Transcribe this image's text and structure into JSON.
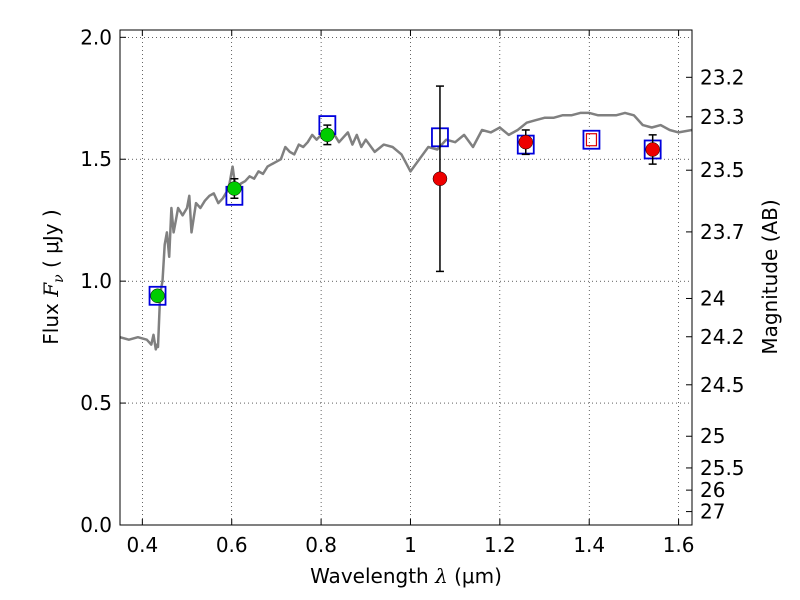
{
  "chart_data": {
    "type": "scatter",
    "xlabel": {
      "prefix": "Wavelength",
      "symbol": "λ",
      "unit": "(μm)"
    },
    "ylabel": {
      "prefix": "Flux",
      "symbol": "F",
      "subscript": "ν",
      "unit": "( μJy )"
    },
    "ylabel_right": "Magnitude (AB)",
    "xlim": [
      0.35,
      1.63
    ],
    "ylim": [
      0.0,
      2.03
    ],
    "grid": true,
    "x_ticks": [
      {
        "value": 0.4,
        "label": "0.4"
      },
      {
        "value": 0.6,
        "label": "0.6"
      },
      {
        "value": 0.8,
        "label": "0.8"
      },
      {
        "value": 1.0,
        "label": "1"
      },
      {
        "value": 1.2,
        "label": "1.2"
      },
      {
        "value": 1.4,
        "label": "1.4"
      },
      {
        "value": 1.6,
        "label": "1.6"
      }
    ],
    "y_ticks": [
      {
        "value": 0.0,
        "label": "0.0"
      },
      {
        "value": 0.5,
        "label": "0.5"
      },
      {
        "value": 1.0,
        "label": "1.0"
      },
      {
        "value": 1.5,
        "label": "1.5"
      },
      {
        "value": 2.0,
        "label": "2.0"
      }
    ],
    "y_right_ticks": [
      {
        "flux": 1.836,
        "label": "23.2"
      },
      {
        "flux": 1.674,
        "label": "23.3"
      },
      {
        "flux": 1.455,
        "label": "23.5"
      },
      {
        "flux": 1.202,
        "label": "23.7"
      },
      {
        "flux": 0.929,
        "label": "24"
      },
      {
        "flux": 0.772,
        "label": "24.2"
      },
      {
        "flux": 0.575,
        "label": "24.5"
      },
      {
        "flux": 0.364,
        "label": "25"
      },
      {
        "flux": 0.234,
        "label": "25.5"
      },
      {
        "flux": 0.143,
        "label": "26"
      },
      {
        "flux": 0.055,
        "label": "27"
      }
    ],
    "series": [
      {
        "type": "line",
        "color": "#808080",
        "x": [
          0.35,
          0.37,
          0.39,
          0.41,
          0.42,
          0.425,
          0.43,
          0.433,
          0.435,
          0.44,
          0.445,
          0.45,
          0.455,
          0.46,
          0.465,
          0.47,
          0.475,
          0.48,
          0.49,
          0.5,
          0.505,
          0.51,
          0.52,
          0.53,
          0.54,
          0.55,
          0.56,
          0.57,
          0.58,
          0.59,
          0.595,
          0.6,
          0.602,
          0.61,
          0.62,
          0.63,
          0.64,
          0.65,
          0.66,
          0.67,
          0.68,
          0.69,
          0.7,
          0.71,
          0.72,
          0.73,
          0.74,
          0.75,
          0.76,
          0.77,
          0.78,
          0.79,
          0.8,
          0.81,
          0.82,
          0.83,
          0.84,
          0.85,
          0.86,
          0.87,
          0.88,
          0.89,
          0.9,
          0.92,
          0.94,
          0.96,
          0.98,
          1.0,
          1.02,
          1.04,
          1.06,
          1.08,
          1.1,
          1.12,
          1.14,
          1.16,
          1.18,
          1.2,
          1.22,
          1.24,
          1.26,
          1.28,
          1.3,
          1.32,
          1.34,
          1.36,
          1.38,
          1.4,
          1.42,
          1.44,
          1.46,
          1.48,
          1.5,
          1.52,
          1.54,
          1.56,
          1.58,
          1.6,
          1.63
        ],
        "y": [
          0.77,
          0.76,
          0.77,
          0.76,
          0.74,
          0.78,
          0.72,
          0.74,
          0.73,
          0.95,
          1.0,
          1.15,
          1.2,
          1.1,
          1.3,
          1.2,
          1.25,
          1.3,
          1.27,
          1.3,
          1.35,
          1.2,
          1.32,
          1.3,
          1.33,
          1.35,
          1.36,
          1.32,
          1.34,
          1.37,
          1.4,
          1.45,
          1.47,
          1.36,
          1.4,
          1.41,
          1.43,
          1.42,
          1.45,
          1.44,
          1.47,
          1.48,
          1.49,
          1.5,
          1.55,
          1.53,
          1.52,
          1.56,
          1.55,
          1.57,
          1.6,
          1.58,
          1.6,
          1.61,
          1.62,
          1.6,
          1.57,
          1.59,
          1.61,
          1.56,
          1.6,
          1.55,
          1.58,
          1.53,
          1.56,
          1.55,
          1.52,
          1.45,
          1.5,
          1.55,
          1.54,
          1.58,
          1.57,
          1.6,
          1.55,
          1.62,
          1.61,
          1.63,
          1.6,
          1.62,
          1.65,
          1.66,
          1.67,
          1.67,
          1.68,
          1.68,
          1.69,
          1.69,
          1.68,
          1.68,
          1.68,
          1.69,
          1.68,
          1.64,
          1.63,
          1.64,
          1.62,
          1.61,
          1.62
        ]
      },
      {
        "type": "scatter",
        "marker": "square-open",
        "color": "#0000dd",
        "points": [
          {
            "x": 0.434,
            "y": 0.94
          },
          {
            "x": 0.606,
            "y": 1.35
          },
          {
            "x": 0.814,
            "y": 1.64
          },
          {
            "x": 1.066,
            "y": 1.59
          },
          {
            "x": 1.258,
            "y": 1.56
          },
          {
            "x": 1.405,
            "y": 1.58
          },
          {
            "x": 1.542,
            "y": 1.54
          }
        ]
      },
      {
        "type": "scatter",
        "marker": "square-open-small",
        "color": "#dd0000",
        "points": [
          {
            "x": 1.405,
            "y": 1.58
          }
        ]
      },
      {
        "type": "scatter",
        "marker": "circle",
        "color": "#00cc00",
        "points": [
          {
            "x": 0.434,
            "y": 0.94,
            "err": 0.02
          },
          {
            "x": 0.606,
            "y": 1.38,
            "err": 0.04
          },
          {
            "x": 0.814,
            "y": 1.6,
            "err": 0.04
          }
        ]
      },
      {
        "type": "scatter",
        "marker": "circle",
        "color": "#ee0000",
        "points": [
          {
            "x": 1.066,
            "y": 1.42,
            "err": 0.38
          },
          {
            "x": 1.258,
            "y": 1.57,
            "err": 0.05
          },
          {
            "x": 1.542,
            "y": 1.54,
            "err": 0.06
          }
        ]
      }
    ]
  }
}
